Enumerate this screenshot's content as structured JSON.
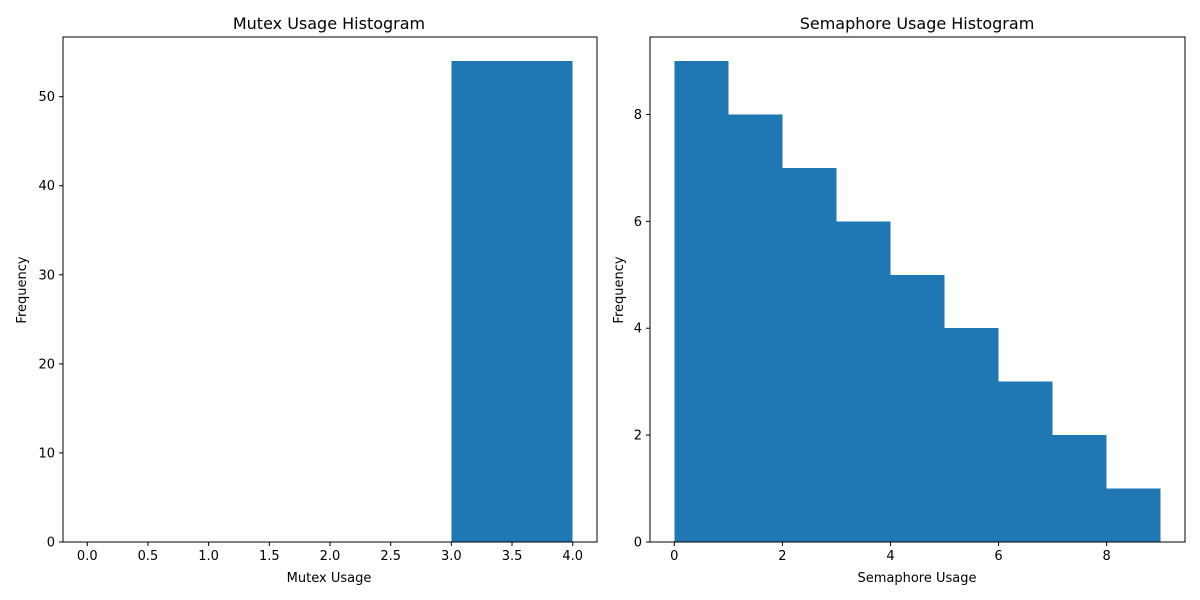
{
  "chart_data": [
    {
      "type": "bar",
      "title": "Mutex Usage Histogram",
      "xlabel": "Mutex Usage",
      "ylabel": "Frequency",
      "xlim": [
        -0.2,
        4.2
      ],
      "ylim": [
        0,
        56.7
      ],
      "xticks": [
        "0.0",
        "0.5",
        "1.0",
        "1.5",
        "2.0",
        "2.5",
        "3.0",
        "3.5",
        "4.0"
      ],
      "xtick_values": [
        0,
        0.5,
        1,
        1.5,
        2,
        2.5,
        3,
        3.5,
        4
      ],
      "yticks": [
        "0",
        "10",
        "20",
        "30",
        "40",
        "50"
      ],
      "ytick_values": [
        0,
        10,
        20,
        30,
        40,
        50
      ],
      "bins": [
        {
          "x0": 3,
          "x1": 4,
          "value": 54
        }
      ],
      "color": "#1f77b4",
      "grid": false
    },
    {
      "type": "bar",
      "title": "Semaphore Usage Histogram",
      "xlabel": "Semaphore Usage",
      "ylabel": "Frequency",
      "xlim": [
        -0.45,
        9.45
      ],
      "ylim": [
        0,
        9.45
      ],
      "xticks": [
        "0",
        "2",
        "4",
        "6",
        "8"
      ],
      "xtick_values": [
        0,
        2,
        4,
        6,
        8
      ],
      "yticks": [
        "0",
        "2",
        "4",
        "6",
        "8"
      ],
      "ytick_values": [
        0,
        2,
        4,
        6,
        8
      ],
      "bins": [
        {
          "x0": 0,
          "x1": 1,
          "value": 9
        },
        {
          "x0": 1,
          "x1": 2,
          "value": 8
        },
        {
          "x0": 2,
          "x1": 3,
          "value": 7
        },
        {
          "x0": 3,
          "x1": 4,
          "value": 6
        },
        {
          "x0": 4,
          "x1": 5,
          "value": 5
        },
        {
          "x0": 5,
          "x1": 6,
          "value": 4
        },
        {
          "x0": 6,
          "x1": 7,
          "value": 3
        },
        {
          "x0": 7,
          "x1": 8,
          "value": 2
        },
        {
          "x0": 8,
          "x1": 9,
          "value": 1
        }
      ],
      "color": "#1f77b4",
      "grid": false
    }
  ]
}
